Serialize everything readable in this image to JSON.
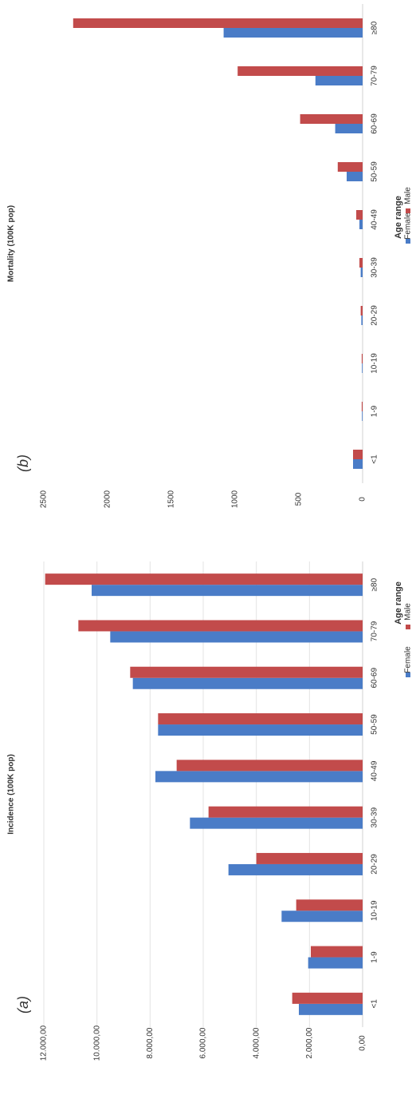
{
  "figure": {
    "panels": [
      {
        "letter": "(a)"
      },
      {
        "letter": "(b)"
      }
    ]
  },
  "chart_data": [
    {
      "type": "bar",
      "panel": "(a)",
      "ylabel": "Incidence (100K pop)",
      "xlabel": "Age range",
      "ylim": [
        0,
        12000
      ],
      "yticks": [
        0,
        2000,
        4000,
        6000,
        8000,
        10000,
        12000
      ],
      "ytick_labels": [
        "0,00",
        "2.000,00",
        "4.000,00",
        "6.000,00",
        "8.000,00",
        "10.000,00",
        "12.000,00"
      ],
      "categories": [
        "<1",
        "1-9",
        "10-19",
        "20-29",
        "30-39",
        "40-49",
        "50-59",
        "60-69",
        "70-79",
        "≥80"
      ],
      "series": [
        {
          "name": "Female",
          "color": "#4a7cc7",
          "values": [
            2400,
            2050,
            3050,
            5050,
            6500,
            7800,
            7700,
            8650,
            9500,
            10200
          ]
        },
        {
          "name": "Male",
          "color": "#c24b4b",
          "values": [
            2650,
            1950,
            2500,
            4000,
            5800,
            7000,
            7700,
            8750,
            10700,
            11950
          ]
        }
      ],
      "legend": {
        "title": "Age range",
        "position": "bottom"
      },
      "grid": true
    },
    {
      "type": "bar",
      "panel": "(b)",
      "ylabel": "Mortality (100K pop)",
      "xlabel": "Age range",
      "ylim": [
        0,
        2500
      ],
      "yticks": [
        0,
        500,
        1000,
        1500,
        2000,
        2500
      ],
      "ytick_labels": [
        "0",
        "500",
        "1000",
        "1500",
        "2000",
        "2500"
      ],
      "categories": [
        "<1",
        "1-9",
        "10-19",
        "20-29",
        "30-39",
        "40-49",
        "50-59",
        "60-69",
        "70-79",
        "≥80"
      ],
      "series": [
        {
          "name": "Female",
          "color": "#4a7cc7",
          "values": [
            75,
            5,
            5,
            10,
            15,
            25,
            125,
            215,
            370,
            1090
          ]
        },
        {
          "name": "Male",
          "color": "#c24b4b",
          "values": [
            75,
            7,
            7,
            15,
            25,
            50,
            195,
            490,
            980,
            2270
          ]
        }
      ],
      "legend": {
        "title": "Age range",
        "position": "bottom"
      },
      "grid": false
    }
  ]
}
